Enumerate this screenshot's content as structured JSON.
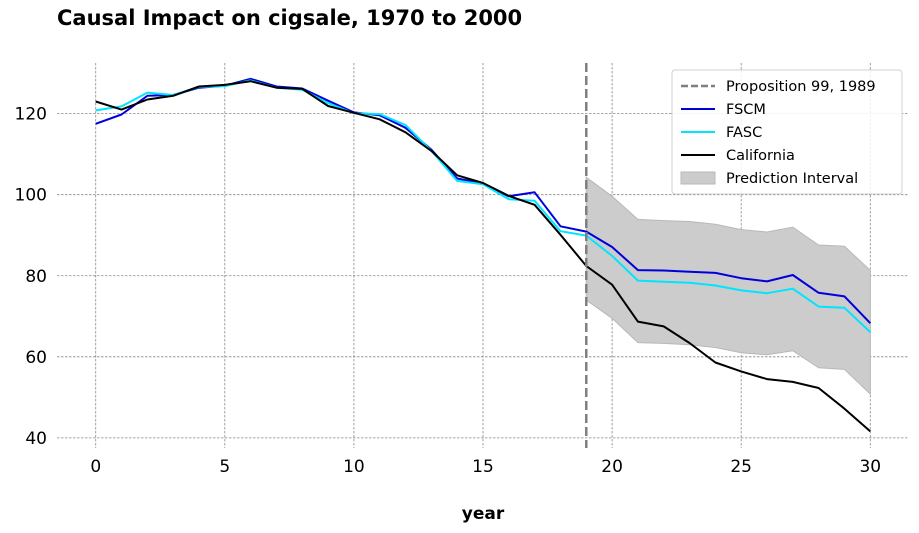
{
  "chart_data": {
    "type": "line",
    "title": "Causal Impact on cigsale, 1970 to 2000",
    "xlabel": "year",
    "ylabel": "",
    "xlim": [
      -1.5,
      31.5
    ],
    "ylim": [
      37.5,
      132.5
    ],
    "xticks": [
      0,
      5,
      10,
      15,
      20,
      25,
      30
    ],
    "yticks": [
      40,
      60,
      80,
      100,
      120
    ],
    "grid": true,
    "legend_position": "top-right",
    "x": [
      0,
      1,
      2,
      3,
      4,
      5,
      6,
      7,
      8,
      9,
      10,
      11,
      12,
      13,
      14,
      15,
      16,
      17,
      18,
      19,
      20,
      21,
      22,
      23,
      24,
      25,
      26,
      27,
      28,
      29,
      30
    ],
    "series": [
      {
        "name": "FSCM",
        "color": "#0000dd",
        "values": [
          117.5,
          119.8,
          124.4,
          124.6,
          126.4,
          126.9,
          128.6,
          126.7,
          126.2,
          123.2,
          120.3,
          119.6,
          116.5,
          111.1,
          104.0,
          102.8,
          99.6,
          100.6,
          92.2,
          90.9,
          87.1,
          81.4,
          81.3,
          81.0,
          80.7,
          79.4,
          78.6,
          80.2,
          75.8,
          74.9,
          68.3
        ]
      },
      {
        "name": "FASC",
        "color": "#00e5ff",
        "values": [
          120.8,
          121.8,
          125.2,
          124.6,
          126.6,
          126.8,
          128.2,
          126.4,
          125.9,
          122.6,
          120.1,
          119.9,
          117.2,
          110.8,
          103.4,
          102.6,
          98.9,
          98.5,
          91.0,
          89.9,
          84.9,
          78.8,
          78.5,
          78.3,
          77.6,
          76.4,
          75.7,
          76.8,
          72.4,
          72.1,
          66.1
        ]
      },
      {
        "name": "California",
        "color": "#000000",
        "values": [
          123.0,
          121.0,
          123.5,
          124.4,
          126.7,
          127.1,
          128.0,
          126.4,
          126.1,
          121.9,
          120.2,
          118.6,
          115.4,
          110.8,
          104.8,
          102.9,
          99.7,
          97.5,
          90.1,
          82.4,
          77.8,
          68.7,
          67.5,
          63.4,
          58.6,
          56.4,
          54.5,
          53.8,
          52.3,
          47.2,
          41.6
        ]
      }
    ],
    "prediction_interval": {
      "name": "Prediction Interval",
      "color": "#cccccc",
      "x": [
        19,
        20,
        21,
        22,
        23,
        24,
        25,
        26,
        27,
        28,
        29,
        30
      ],
      "lower": [
        74.0,
        69.5,
        63.5,
        63.3,
        63.0,
        62.3,
        61.0,
        60.5,
        61.5,
        57.3,
        56.9,
        50.8
      ],
      "upper": [
        104.3,
        99.6,
        93.9,
        93.6,
        93.4,
        92.7,
        91.4,
        90.8,
        92.0,
        87.6,
        87.3,
        81.3
      ]
    },
    "event_line": {
      "name": "Proposition 99, 1989",
      "x": 19,
      "color": "#7f7f7f"
    }
  }
}
